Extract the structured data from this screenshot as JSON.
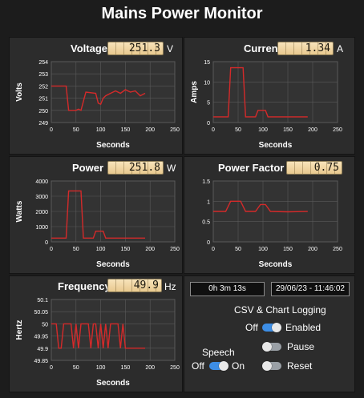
{
  "app_title": "Mains Power Monitor",
  "panels": {
    "voltage": {
      "title": "Voltage",
      "reading": "251.3",
      "unit": "V"
    },
    "current": {
      "title": "Current",
      "reading": "1.34",
      "unit": "A"
    },
    "power": {
      "title": "Power",
      "reading": "251.8",
      "unit": "W"
    },
    "power_factor": {
      "title": "Power Factor",
      "reading": "0.75"
    },
    "frequency": {
      "title": "Frequency",
      "reading": "49.9",
      "unit": "Hz"
    }
  },
  "status": {
    "elapsed": "0h 3m 13s",
    "datetime": "29/06/23 - 11:46:02",
    "logging_title": "CSV & Chart Logging",
    "logging_off_label": "Off",
    "logging_enabled_label": "Enabled",
    "logging_enabled": true,
    "pause_label": "Pause",
    "pause_on": false,
    "reset_label": "Reset",
    "reset_on": false,
    "speech_title": "Speech",
    "speech_off_label": "Off",
    "speech_on_label": "On",
    "speech_on": true
  },
  "colors": {
    "line": "#d42a2a",
    "grid": "#5a5a5a",
    "accent": "#3d8ee6"
  },
  "chart_data": [
    {
      "id": "voltage",
      "type": "line",
      "xlabel": "Seconds",
      "ylabel": "Volts",
      "xlim": [
        0,
        250
      ],
      "ylim": [
        249,
        254
      ],
      "xticks": [
        0,
        50,
        100,
        150,
        200,
        250
      ],
      "yticks": [
        249,
        250,
        251,
        252,
        253,
        254
      ],
      "grid": true,
      "x": [
        0,
        30,
        35,
        50,
        55,
        60,
        70,
        90,
        95,
        100,
        105,
        110,
        120,
        130,
        140,
        150,
        160,
        170,
        180,
        190
      ],
      "y": [
        252,
        252,
        250,
        250,
        250.1,
        250,
        251.5,
        251.4,
        250.6,
        250.5,
        251,
        251.2,
        251.4,
        251.6,
        251.4,
        251.7,
        251.5,
        251.6,
        251.2,
        251.4
      ]
    },
    {
      "id": "current",
      "type": "line",
      "xlabel": "Seconds",
      "ylabel": "Amps",
      "xlim": [
        0,
        250
      ],
      "ylim": [
        0,
        15
      ],
      "xticks": [
        0,
        50,
        100,
        150,
        200,
        250
      ],
      "yticks": [
        0,
        5,
        10,
        15
      ],
      "grid": true,
      "x": [
        0,
        30,
        35,
        60,
        65,
        85,
        90,
        105,
        110,
        150,
        190
      ],
      "y": [
        1.4,
        1.4,
        13.5,
        13.5,
        1.4,
        1.4,
        3,
        3,
        1.4,
        1.4,
        1.4
      ]
    },
    {
      "id": "power",
      "type": "line",
      "xlabel": "Seconds",
      "ylabel": "Watts",
      "xlim": [
        0,
        250
      ],
      "ylim": [
        0,
        4000
      ],
      "xticks": [
        0,
        50,
        100,
        150,
        200,
        250
      ],
      "yticks": [
        0,
        1000,
        2000,
        3000,
        4000
      ],
      "grid": true,
      "x": [
        0,
        30,
        35,
        60,
        65,
        85,
        90,
        105,
        110,
        150,
        190
      ],
      "y": [
        250,
        250,
        3350,
        3350,
        250,
        250,
        700,
        700,
        250,
        250,
        250
      ]
    },
    {
      "id": "power_factor",
      "type": "line",
      "xlabel": "Seconds",
      "ylabel": "",
      "xlim": [
        0,
        250
      ],
      "ylim": [
        0,
        1.5
      ],
      "xticks": [
        0,
        50,
        100,
        150,
        200,
        250
      ],
      "yticks": [
        0,
        0.5,
        1,
        1.5
      ],
      "grid": true,
      "x": [
        0,
        25,
        35,
        55,
        65,
        85,
        95,
        105,
        115,
        150,
        190
      ],
      "y": [
        0.75,
        0.75,
        1.0,
        1.0,
        0.75,
        0.75,
        0.92,
        0.92,
        0.75,
        0.74,
        0.75
      ]
    },
    {
      "id": "frequency",
      "type": "line",
      "xlabel": "Seconds",
      "ylabel": "Hertz",
      "xlim": [
        0,
        250
      ],
      "ylim": [
        49.85,
        50.1
      ],
      "xticks": [
        0,
        50,
        100,
        150,
        200,
        250
      ],
      "yticks": [
        49.85,
        49.9,
        49.95,
        50,
        50.05,
        50.1
      ],
      "grid": true,
      "x": [
        0,
        10,
        15,
        20,
        25,
        40,
        45,
        50,
        55,
        60,
        75,
        80,
        85,
        90,
        95,
        100,
        105,
        110,
        115,
        120,
        135,
        140,
        145,
        150,
        190
      ],
      "y": [
        50,
        50,
        49.9,
        49.9,
        50,
        50,
        49.9,
        50,
        49.9,
        50,
        50,
        49.9,
        50,
        50,
        49.9,
        50,
        49.9,
        50,
        49.9,
        50,
        50,
        49.9,
        50,
        49.9,
        49.9
      ]
    }
  ]
}
